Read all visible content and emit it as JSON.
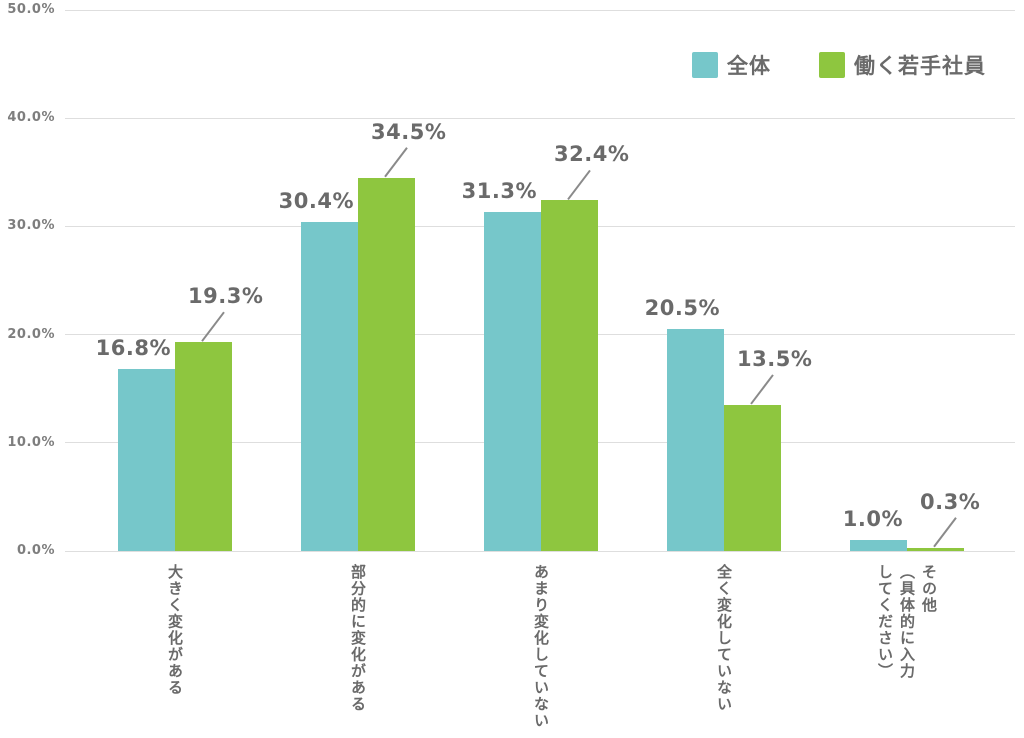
{
  "legend": {
    "items": [
      {
        "id": "overall",
        "label": "全体",
        "color": "#76c7ca"
      },
      {
        "id": "young-employees",
        "label": "働く若手社員",
        "color": "#8ec63f"
      }
    ]
  },
  "colors": {
    "series_overall": "#76c7ca",
    "series_young": "#8ec63f",
    "gridline": "#dedede",
    "leader_line": "#8a8a8a",
    "label_text": "#6a6a6a",
    "axis_text": "#7e7e7e",
    "background": "#ffffff"
  },
  "chart_data": {
    "type": "bar",
    "title": "",
    "xlabel": "",
    "ylabel": "",
    "categories": [
      "大きく変化がある",
      "部分的に変化がある",
      "あまり変化していない",
      "全く変化していない",
      "その他\n（具体的に入力\nしてください）"
    ],
    "series": [
      {
        "name": "全体",
        "color": "#76c7ca",
        "values": [
          16.8,
          30.4,
          31.3,
          20.5,
          1.0
        ]
      },
      {
        "name": "働く若手社員",
        "color": "#8ec63f",
        "values": [
          19.3,
          34.5,
          32.4,
          13.5,
          0.3
        ]
      }
    ],
    "data_labels": [
      [
        "16.8%",
        "30.4%",
        "31.3%",
        "20.5%",
        "1.0%"
      ],
      [
        "19.3%",
        "34.5%",
        "32.4%",
        "13.5%",
        "0.3%"
      ]
    ],
    "y_ticks": [
      "0.0%",
      "10.0%",
      "20.0%",
      "30.0%",
      "40.0%",
      "50.0%"
    ],
    "ylim": [
      0,
      50
    ],
    "grid": "horizontal",
    "legend_position": "top-right",
    "bar_label_style": "green series labels offset up-right with diagonal leader line to bar top"
  }
}
